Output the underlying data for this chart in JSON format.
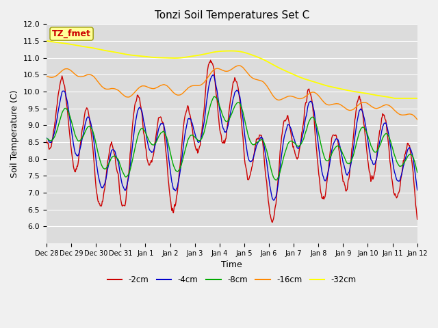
{
  "title": "Tonzi Soil Temperatures Set C",
  "xlabel": "Time",
  "ylabel": "Soil Temperature (C)",
  "ylim": [
    5.5,
    12.0
  ],
  "yticks": [
    6.0,
    6.5,
    7.0,
    7.5,
    8.0,
    8.5,
    9.0,
    9.5,
    10.0,
    10.5,
    11.0,
    11.5,
    12.0
  ],
  "xtick_labels": [
    "Dec 28",
    "Dec 29",
    "Dec 30",
    "Dec 31",
    "Jan 1",
    "Jan 2",
    "Jan 3",
    "Jan 4",
    "Jan 5",
    "Jan 6",
    "Jan 7",
    "Jan 8",
    "Jan 9",
    "Jan 10",
    "Jan 11",
    "Jan 12"
  ],
  "colors": {
    "-2cm": "#cc0000",
    "-4cm": "#0000cc",
    "-8cm": "#00aa00",
    "-16cm": "#ff8800",
    "-32cm": "#ffff00"
  },
  "legend_labels": [
    "-2cm",
    "-4cm",
    "-8cm",
    "-16cm",
    "-32cm"
  ],
  "annotation_text": "TZ_fmet",
  "annotation_color": "#cc0000",
  "annotation_bg": "#ffff99",
  "fig_bg": "#f0f0f0",
  "plot_bg": "#dcdcdc",
  "grid_color": "#ffffff"
}
